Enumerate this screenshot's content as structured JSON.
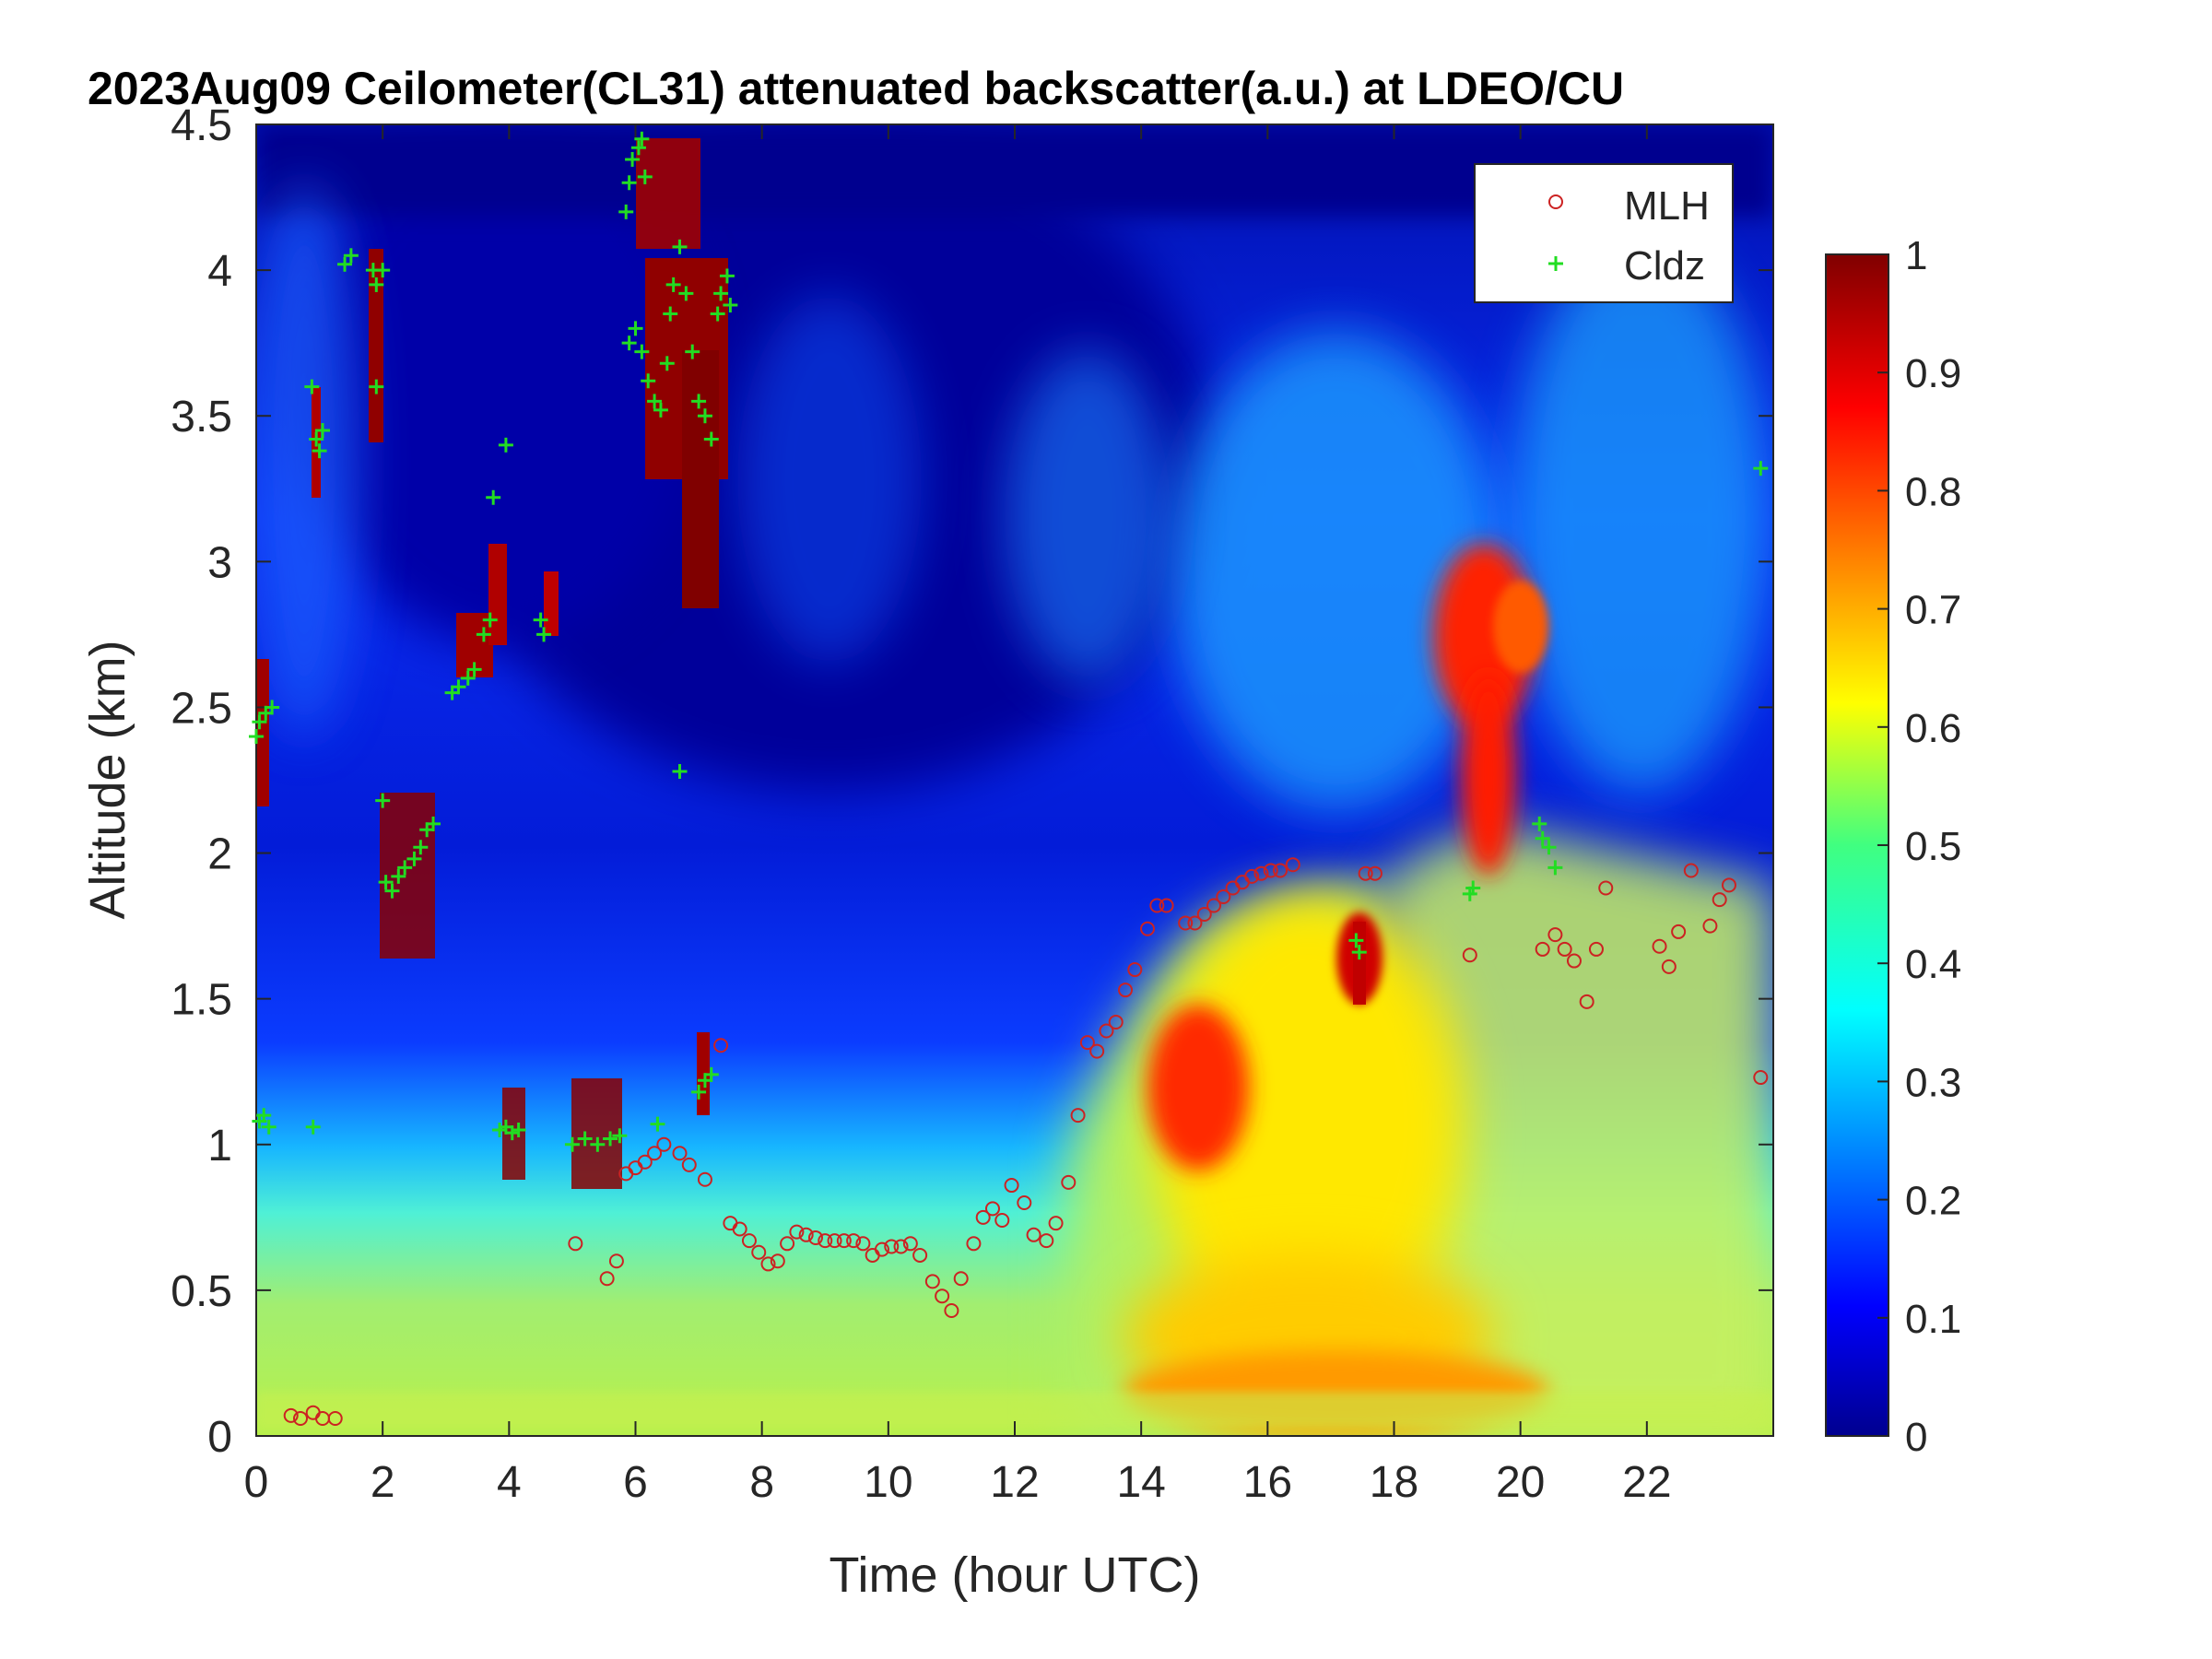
{
  "chart_data": {
    "type": "heatmap",
    "title": "2023Aug09 Ceilometer(CL31) attenuated backscatter(a.u.) at LDEO/CU",
    "xlabel": "Time (hour UTC)",
    "ylabel": "Altitude (km)",
    "xlim": [
      0,
      24
    ],
    "ylim": [
      0,
      4.5
    ],
    "x_ticks": [
      0,
      2,
      4,
      6,
      8,
      10,
      12,
      14,
      16,
      18,
      20,
      22
    ],
    "y_ticks": [
      0,
      0.5,
      1,
      1.5,
      2,
      2.5,
      3,
      3.5,
      4,
      4.5
    ],
    "y_tick_labels": [
      "0",
      "0.5",
      "1",
      "1.5",
      "2",
      "2.5",
      "3",
      "3.5",
      "4",
      "4.5"
    ],
    "colorbar": {
      "colormap": "jet",
      "range": [
        0,
        1
      ],
      "ticks": [
        0,
        0.1,
        0.2,
        0.3,
        0.4,
        0.5,
        0.6,
        0.7,
        0.8,
        0.9,
        1
      ],
      "tick_labels": [
        "0",
        "0.1",
        "0.2",
        "0.3",
        "0.4",
        "0.5",
        "0.6",
        "0.7",
        "0.8",
        "0.9",
        "1"
      ]
    },
    "legend": {
      "placement": "top-right",
      "entries": [
        "MLH",
        "Cldz"
      ]
    },
    "series": [
      {
        "name": "MLH",
        "marker": "open-circle",
        "color": "#cc2222",
        "points": [
          [
            0.55,
            0.07
          ],
          [
            0.7,
            0.06
          ],
          [
            0.9,
            0.08
          ],
          [
            1.05,
            0.06
          ],
          [
            1.25,
            0.06
          ],
          [
            5.05,
            0.66
          ],
          [
            5.55,
            0.54
          ],
          [
            5.7,
            0.6
          ],
          [
            5.85,
            0.9
          ],
          [
            6.0,
            0.92
          ],
          [
            6.15,
            0.94
          ],
          [
            6.3,
            0.97
          ],
          [
            6.45,
            1.0
          ],
          [
            6.7,
            0.97
          ],
          [
            6.85,
            0.93
          ],
          [
            7.1,
            0.88
          ],
          [
            7.35,
            1.34
          ],
          [
            7.5,
            0.73
          ],
          [
            7.65,
            0.71
          ],
          [
            7.8,
            0.67
          ],
          [
            7.95,
            0.63
          ],
          [
            8.1,
            0.59
          ],
          [
            8.25,
            0.6
          ],
          [
            8.4,
            0.66
          ],
          [
            8.55,
            0.7
          ],
          [
            8.7,
            0.69
          ],
          [
            8.85,
            0.68
          ],
          [
            9.0,
            0.67
          ],
          [
            9.15,
            0.67
          ],
          [
            9.3,
            0.67
          ],
          [
            9.45,
            0.67
          ],
          [
            9.6,
            0.66
          ],
          [
            9.75,
            0.62
          ],
          [
            9.9,
            0.64
          ],
          [
            10.05,
            0.65
          ],
          [
            10.2,
            0.65
          ],
          [
            10.35,
            0.66
          ],
          [
            10.5,
            0.62
          ],
          [
            10.7,
            0.53
          ],
          [
            10.85,
            0.48
          ],
          [
            11.0,
            0.43
          ],
          [
            11.15,
            0.54
          ],
          [
            11.35,
            0.66
          ],
          [
            11.5,
            0.75
          ],
          [
            11.65,
            0.78
          ],
          [
            11.8,
            0.74
          ],
          [
            11.95,
            0.86
          ],
          [
            12.15,
            0.8
          ],
          [
            12.3,
            0.69
          ],
          [
            12.5,
            0.67
          ],
          [
            12.65,
            0.73
          ],
          [
            12.85,
            0.87
          ],
          [
            13.0,
            1.1
          ],
          [
            13.15,
            1.35
          ],
          [
            13.3,
            1.32
          ],
          [
            13.45,
            1.39
          ],
          [
            13.6,
            1.42
          ],
          [
            13.75,
            1.53
          ],
          [
            13.9,
            1.6
          ],
          [
            14.1,
            1.74
          ],
          [
            14.25,
            1.82
          ],
          [
            14.4,
            1.82
          ],
          [
            14.7,
            1.76
          ],
          [
            14.85,
            1.76
          ],
          [
            15.0,
            1.79
          ],
          [
            15.15,
            1.82
          ],
          [
            15.3,
            1.85
          ],
          [
            15.45,
            1.88
          ],
          [
            15.6,
            1.9
          ],
          [
            15.75,
            1.92
          ],
          [
            15.9,
            1.93
          ],
          [
            16.05,
            1.94
          ],
          [
            16.2,
            1.94
          ],
          [
            16.4,
            1.96
          ],
          [
            17.55,
            1.93
          ],
          [
            17.7,
            1.93
          ],
          [
            19.2,
            1.65
          ],
          [
            20.35,
            1.67
          ],
          [
            20.55,
            1.72
          ],
          [
            20.7,
            1.67
          ],
          [
            20.85,
            1.63
          ],
          [
            21.05,
            1.49
          ],
          [
            21.2,
            1.67
          ],
          [
            21.35,
            1.88
          ],
          [
            22.2,
            1.68
          ],
          [
            22.35,
            1.61
          ],
          [
            22.5,
            1.73
          ],
          [
            22.7,
            1.94
          ],
          [
            23.0,
            1.75
          ],
          [
            23.15,
            1.84
          ],
          [
            23.3,
            1.89
          ],
          [
            23.8,
            1.23
          ]
        ]
      },
      {
        "name": "Cldz",
        "marker": "plus",
        "color": "#22dd22",
        "points": [
          [
            0.0,
            2.4
          ],
          [
            0.05,
            2.45
          ],
          [
            0.15,
            2.48
          ],
          [
            0.25,
            2.5
          ],
          [
            0.05,
            1.08
          ],
          [
            0.12,
            1.1
          ],
          [
            0.2,
            1.06
          ],
          [
            0.9,
            1.06
          ],
          [
            0.88,
            3.6
          ],
          [
            0.95,
            3.42
          ],
          [
            1.0,
            3.38
          ],
          [
            1.05,
            3.45
          ],
          [
            1.4,
            4.02
          ],
          [
            1.5,
            4.05
          ],
          [
            1.85,
            4.0
          ],
          [
            1.9,
            3.95
          ],
          [
            2.0,
            4.0
          ],
          [
            1.9,
            3.6
          ],
          [
            2.0,
            2.18
          ],
          [
            2.05,
            1.9
          ],
          [
            2.15,
            1.87
          ],
          [
            2.25,
            1.92
          ],
          [
            2.35,
            1.95
          ],
          [
            2.5,
            1.98
          ],
          [
            2.6,
            2.02
          ],
          [
            2.7,
            2.08
          ],
          [
            2.8,
            2.1
          ],
          [
            3.1,
            2.55
          ],
          [
            3.2,
            2.57
          ],
          [
            3.35,
            2.6
          ],
          [
            3.45,
            2.63
          ],
          [
            3.6,
            2.75
          ],
          [
            3.7,
            2.8
          ],
          [
            3.75,
            3.22
          ],
          [
            3.95,
            3.4
          ],
          [
            3.85,
            1.05
          ],
          [
            3.95,
            1.06
          ],
          [
            4.05,
            1.04
          ],
          [
            4.15,
            1.05
          ],
          [
            4.5,
            2.8
          ],
          [
            4.55,
            2.75
          ],
          [
            5.0,
            1.0
          ],
          [
            5.2,
            1.02
          ],
          [
            5.4,
            1.0
          ],
          [
            5.6,
            1.02
          ],
          [
            5.75,
            1.03
          ],
          [
            5.85,
            4.2
          ],
          [
            5.9,
            4.3
          ],
          [
            5.95,
            4.38
          ],
          [
            6.05,
            4.42
          ],
          [
            6.1,
            4.45
          ],
          [
            6.15,
            4.32
          ],
          [
            5.9,
            3.75
          ],
          [
            6.0,
            3.8
          ],
          [
            6.1,
            3.72
          ],
          [
            6.2,
            3.62
          ],
          [
            6.3,
            3.55
          ],
          [
            6.4,
            3.52
          ],
          [
            6.5,
            3.68
          ],
          [
            6.55,
            3.85
          ],
          [
            6.6,
            3.95
          ],
          [
            6.7,
            4.08
          ],
          [
            6.8,
            3.92
          ],
          [
            6.9,
            3.72
          ],
          [
            7.0,
            3.55
          ],
          [
            7.1,
            3.5
          ],
          [
            7.2,
            3.42
          ],
          [
            7.3,
            3.85
          ],
          [
            7.35,
            3.92
          ],
          [
            7.45,
            3.98
          ],
          [
            7.5,
            3.88
          ],
          [
            6.7,
            2.28
          ],
          [
            7.0,
            1.18
          ],
          [
            7.1,
            1.22
          ],
          [
            7.2,
            1.24
          ],
          [
            6.35,
            1.07
          ],
          [
            17.4,
            1.7
          ],
          [
            17.45,
            1.66
          ],
          [
            19.2,
            1.86
          ],
          [
            19.25,
            1.88
          ],
          [
            20.3,
            2.1
          ],
          [
            20.35,
            2.05
          ],
          [
            20.45,
            2.02
          ],
          [
            20.55,
            1.95
          ],
          [
            23.8,
            3.32
          ]
        ]
      }
    ]
  }
}
